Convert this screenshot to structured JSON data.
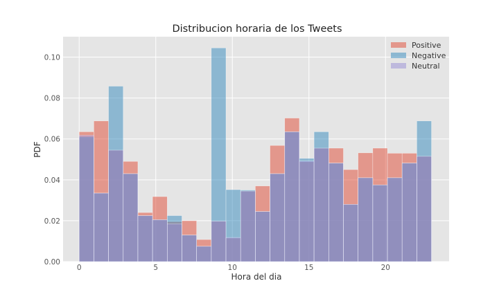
{
  "chart_data": {
    "type": "bar",
    "title": "Distribucion horaria de los Tweets",
    "xlabel": "Hora del dia",
    "ylabel": "PDF",
    "xlim": [
      -1.05,
      24.15
    ],
    "ylim": [
      0,
      0.11
    ],
    "xticks": [
      0,
      5,
      10,
      15,
      20
    ],
    "yticks": [
      0.0,
      0.02,
      0.04,
      0.06,
      0.08,
      0.1
    ],
    "ytick_labels": [
      "0.00",
      "0.02",
      "0.04",
      "0.06",
      "0.08",
      "0.10"
    ],
    "grid": true,
    "legend_position": "top-right",
    "bin_edges": [
      0,
      0.958,
      1.917,
      2.875,
      3.833,
      4.792,
      5.75,
      6.708,
      7.667,
      8.625,
      9.583,
      10.542,
      11.5,
      12.458,
      13.417,
      14.375,
      15.333,
      16.292,
      17.25,
      18.208,
      19.167,
      20.125,
      21.083,
      22.042,
      23.0
    ],
    "series": [
      {
        "name": "Positive",
        "color": "#E24A33",
        "alpha": 0.5,
        "values": [
          0.0635,
          0.0688,
          0.0545,
          0.049,
          0.024,
          0.0318,
          0.0195,
          0.02,
          0.0108,
          0.0198,
          0.0115,
          0.0345,
          0.037,
          0.0568,
          0.0702,
          0.0488,
          0.0555,
          0.0555,
          0.045,
          0.0532,
          0.0555,
          0.053,
          0.053,
          0.0515
        ]
      },
      {
        "name": "Negative",
        "color": "#348ABD",
        "alpha": 0.5,
        "values": [
          0.061,
          0.0335,
          0.0858,
          0.043,
          0.0225,
          0.0205,
          0.0225,
          0.013,
          0.0075,
          0.1045,
          0.0352,
          0.035,
          0.0245,
          0.043,
          0.0635,
          0.0505,
          0.0635,
          0.0482,
          0.028,
          0.041,
          0.0375,
          0.041,
          0.0482,
          0.0688
        ]
      },
      {
        "name": "Neutral",
        "color": "#988ED5",
        "alpha": 0.5,
        "values": [
          0.0618,
          0.0335,
          0.0545,
          0.043,
          0.0225,
          0.0205,
          0.0185,
          0.013,
          0.0075,
          0.0198,
          0.0118,
          0.0345,
          0.0245,
          0.043,
          0.0635,
          0.0492,
          0.0555,
          0.0482,
          0.028,
          0.041,
          0.0375,
          0.041,
          0.0482,
          0.0515
        ]
      }
    ]
  }
}
